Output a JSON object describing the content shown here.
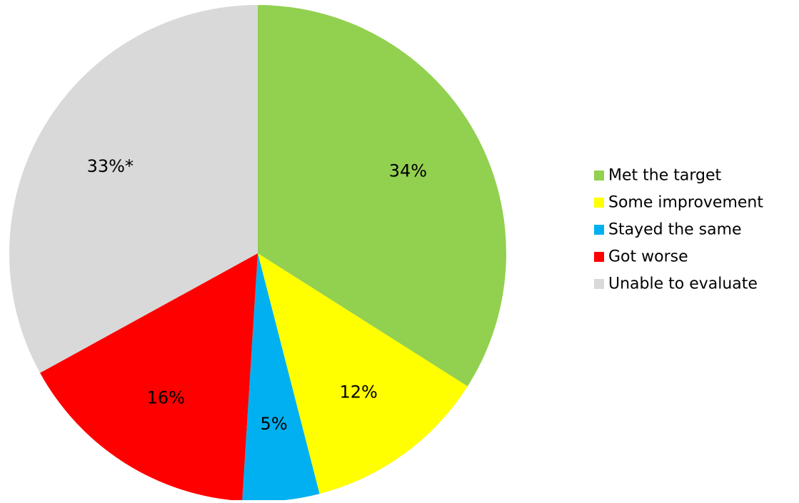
{
  "chart_data": {
    "type": "pie",
    "title": "",
    "categories": [
      "Met the target",
      "Some improvement",
      "Stayed the same",
      "Got worse",
      "Unable to evaluate"
    ],
    "values": [
      34,
      12,
      5,
      16,
      33
    ],
    "labels": [
      "34%",
      "12%",
      "5%",
      "16%",
      "33%*"
    ],
    "colors": [
      "#92d050",
      "#ffff00",
      "#00b0f0",
      "#ff0000",
      "#d9d9d9"
    ],
    "start_angle": "12 o'clock",
    "direction": "clockwise",
    "legend_position": "right"
  }
}
